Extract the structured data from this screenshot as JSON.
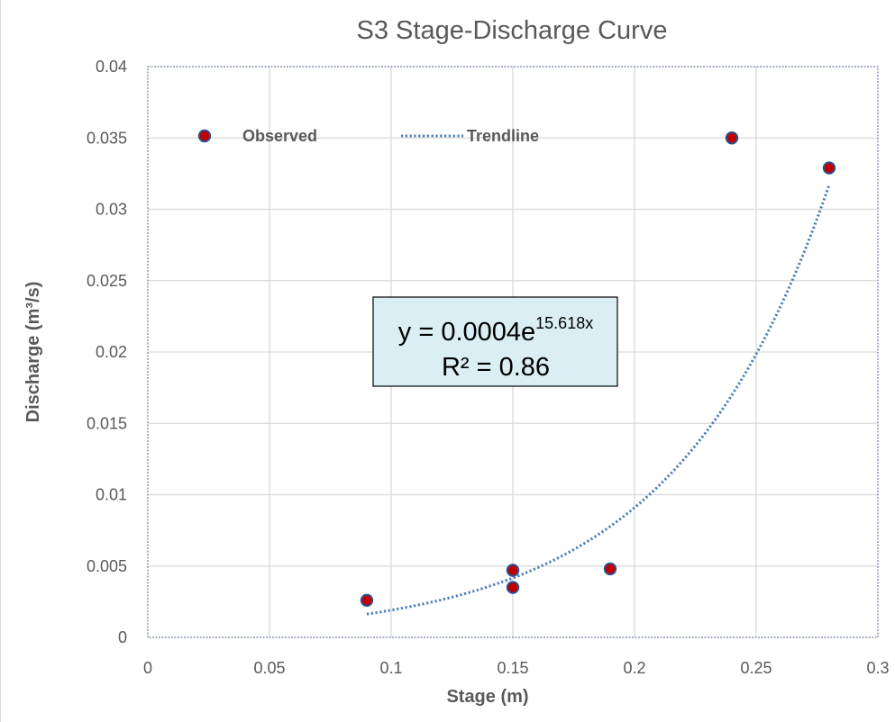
{
  "chart_data": {
    "type": "scatter",
    "title": "S3 Stage-Discharge Curve",
    "xlabel": "Stage (m)",
    "ylabel": "Discharge (m³/s)",
    "xlim": [
      0,
      0.3
    ],
    "ylim": [
      0,
      0.04
    ],
    "x_ticks": [
      "0",
      "0.05",
      "0.1",
      "0.15",
      "0.2",
      "0.25",
      "0.3"
    ],
    "y_ticks": [
      "0",
      "0.005",
      "0.01",
      "0.015",
      "0.02",
      "0.025",
      "0.03",
      "0.035",
      "0.04"
    ],
    "grid": true,
    "legend_position": "top",
    "series": [
      {
        "name": "Observed",
        "kind": "points",
        "color": "#c00000",
        "edge_color": "#2f4f8f",
        "x": [
          0.09,
          0.15,
          0.15,
          0.19,
          0.24,
          0.28
        ],
        "y": [
          0.0026,
          0.0047,
          0.0035,
          0.0048,
          0.035,
          0.0329
        ]
      },
      {
        "name": "Trendline",
        "kind": "exponential-fit",
        "color": "#4a7ebb",
        "coefficient": 0.0004,
        "exponent": 15.618,
        "x_range": [
          0.09,
          0.28
        ]
      }
    ],
    "annotation": {
      "line1_prefix": "y = 0.0004e",
      "line1_exponent": "15.618x",
      "line2": "R² = 0.86",
      "fill": "#dbeef4"
    }
  }
}
